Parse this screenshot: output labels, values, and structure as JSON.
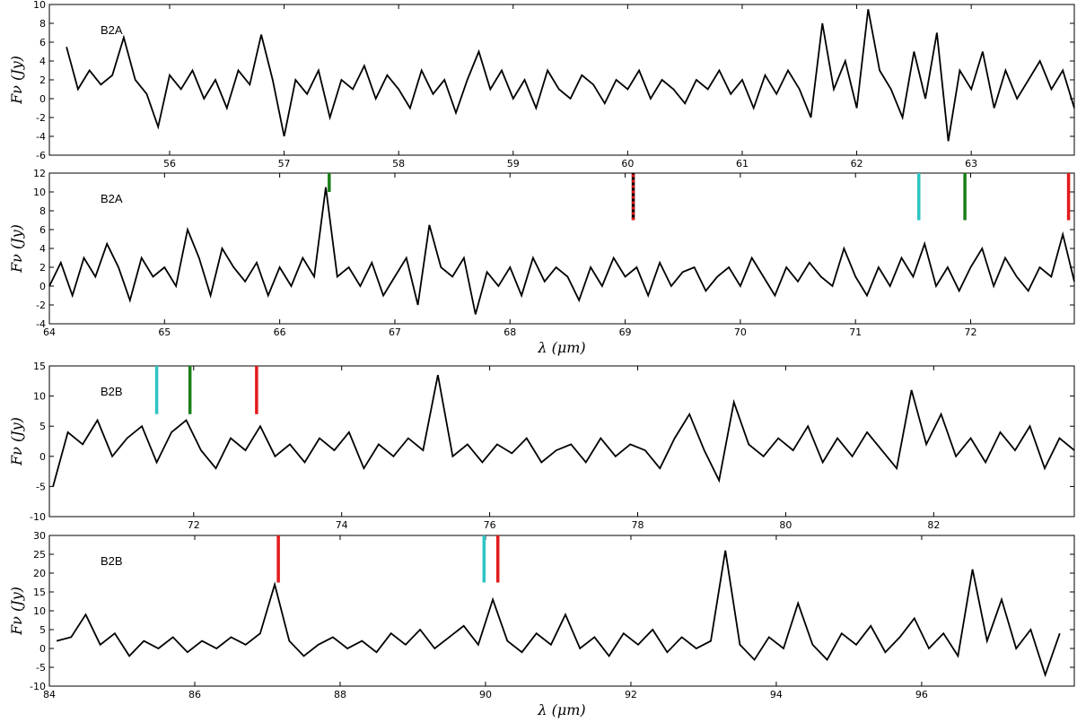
{
  "chart_data": [
    {
      "type": "line",
      "label": "B2A",
      "ylabel": "Fν (Jy)",
      "xlim": [
        54.95,
        63.9
      ],
      "ylim": [
        -6,
        10
      ],
      "xticks": [
        56,
        57,
        58,
        59,
        60,
        61,
        62,
        63
      ],
      "yticks": [
        -6,
        -4,
        -2,
        0,
        2,
        4,
        6,
        8,
        10
      ],
      "series": [
        {
          "color": "#000000",
          "x": [
            55.1,
            55.2,
            55.3,
            55.4,
            55.5,
            55.6,
            55.7,
            55.8,
            55.9,
            56.0,
            56.1,
            56.2,
            56.3,
            56.4,
            56.5,
            56.6,
            56.7,
            56.8,
            56.9,
            57.0,
            57.1,
            57.2,
            57.3,
            57.4,
            57.5,
            57.6,
            57.7,
            57.8,
            57.9,
            58.0,
            58.1,
            58.2,
            58.3,
            58.4,
            58.5,
            58.6,
            58.7,
            58.8,
            58.9,
            59.0,
            59.1,
            59.2,
            59.3,
            59.4,
            59.5,
            59.6,
            59.7,
            59.8,
            59.9,
            60.0,
            60.1,
            60.2,
            60.3,
            60.4,
            60.5,
            60.6,
            60.7,
            60.8,
            60.9,
            61.0,
            61.1,
            61.2,
            61.3,
            61.4,
            61.5,
            61.6,
            61.7,
            61.8,
            61.9,
            62.0,
            62.1,
            62.2,
            62.3,
            62.4,
            62.5,
            62.6,
            62.7,
            62.8,
            62.9,
            63.0,
            63.1,
            63.2,
            63.3,
            63.4,
            63.5,
            63.6,
            63.7,
            63.8,
            63.9
          ],
          "values": [
            5.5,
            1,
            3,
            1.5,
            2.5,
            6.5,
            2,
            0.5,
            -3,
            2.5,
            1,
            3,
            0,
            2,
            -1,
            3,
            1.5,
            6.8,
            2,
            -4,
            2,
            0.5,
            3,
            -2,
            2,
            1,
            3.5,
            0,
            2.5,
            1,
            -1,
            3,
            0.5,
            2,
            -1.5,
            2,
            5,
            1,
            3,
            0,
            2,
            -1,
            3,
            1,
            0,
            2.5,
            1.5,
            -0.5,
            2,
            1,
            3,
            0,
            2,
            1,
            -0.5,
            2,
            1,
            3,
            0.5,
            2,
            -1,
            2.5,
            0.5,
            3,
            1,
            -2,
            8,
            1,
            4,
            -1,
            9.5,
            3,
            1,
            -2,
            5,
            0,
            7,
            -4.5,
            3,
            1,
            5,
            -1,
            3,
            0,
            2,
            4,
            1,
            3,
            -1
          ]
        }
      ],
      "markers": []
    },
    {
      "type": "line",
      "label": "B2A",
      "ylabel": "Fν (Jy)",
      "xlabel": "λ (μm)",
      "xlim": [
        64,
        72.9
      ],
      "ylim": [
        -4,
        12
      ],
      "xticks": [
        64,
        65,
        66,
        67,
        68,
        69,
        70,
        71,
        72
      ],
      "yticks": [
        -4,
        -2,
        0,
        2,
        4,
        6,
        8,
        10,
        12
      ],
      "series": [
        {
          "color": "#000000",
          "x": [
            64.0,
            64.1,
            64.2,
            64.3,
            64.4,
            64.5,
            64.6,
            64.7,
            64.8,
            64.9,
            65.0,
            65.1,
            65.2,
            65.3,
            65.4,
            65.5,
            65.6,
            65.7,
            65.8,
            65.9,
            66.0,
            66.1,
            66.2,
            66.3,
            66.4,
            66.5,
            66.6,
            66.7,
            66.8,
            66.9,
            67.0,
            67.1,
            67.2,
            67.3,
            67.4,
            67.5,
            67.6,
            67.7,
            67.8,
            67.9,
            68.0,
            68.1,
            68.2,
            68.3,
            68.4,
            68.5,
            68.6,
            68.7,
            68.8,
            68.9,
            69.0,
            69.1,
            69.2,
            69.3,
            69.4,
            69.5,
            69.6,
            69.7,
            69.8,
            69.9,
            70.0,
            70.1,
            70.2,
            70.3,
            70.4,
            70.5,
            70.6,
            70.7,
            70.8,
            70.9,
            71.0,
            71.1,
            71.2,
            71.3,
            71.4,
            71.5,
            71.6,
            71.7,
            71.8,
            71.9,
            72.0,
            72.1,
            72.2,
            72.3,
            72.4,
            72.5,
            72.6,
            72.7,
            72.8,
            72.9
          ],
          "values": [
            0,
            2.5,
            -1,
            3,
            1,
            4.5,
            2,
            -1.5,
            3,
            1,
            2,
            0,
            6,
            3,
            -1,
            4,
            2,
            0.5,
            2.5,
            -1,
            2,
            0,
            3,
            1,
            10.5,
            1,
            2,
            0,
            2.5,
            -1,
            1,
            3,
            -2,
            6.5,
            2,
            1,
            3,
            -3,
            1.5,
            0,
            2,
            -1,
            3,
            0.5,
            2,
            1,
            -1.5,
            2,
            0,
            3,
            1,
            2,
            -1,
            2.5,
            0,
            1.5,
            2,
            -0.5,
            1,
            2,
            0,
            3,
            1,
            -1,
            2,
            0.5,
            2.5,
            1,
            0,
            4,
            1,
            -1,
            2,
            0,
            3,
            1,
            4.5,
            0,
            2,
            -0.5,
            2,
            4,
            0,
            3,
            1,
            -0.5,
            2,
            1,
            5.5,
            0.5
          ]
        }
      ],
      "markers": [
        {
          "x": 66.43,
          "color": "#1a7f1a",
          "y": [
            10,
            12
          ]
        },
        {
          "x": 69.07,
          "color": "#000000",
          "dash_color": "#e31a1c",
          "y": [
            7,
            12
          ]
        },
        {
          "x": 71.55,
          "color": "#2ec4c4",
          "y": [
            7,
            12
          ]
        },
        {
          "x": 71.95,
          "color": "#1a7f1a",
          "y": [
            7,
            12
          ]
        },
        {
          "x": 72.85,
          "color": "#e31a1c",
          "y": [
            7,
            12
          ]
        }
      ]
    },
    {
      "type": "line",
      "label": "B2B",
      "ylabel": "Fν (Jy)",
      "xlim": [
        70.05,
        83.9
      ],
      "ylim": [
        -10,
        15
      ],
      "xticks": [
        72,
        74,
        76,
        78,
        80,
        82
      ],
      "yticks": [
        -10,
        -5,
        0,
        5,
        10,
        15
      ],
      "series": [
        {
          "color": "#000000",
          "x": [
            70.1,
            70.3,
            70.5,
            70.7,
            70.9,
            71.1,
            71.3,
            71.5,
            71.7,
            71.9,
            72.1,
            72.3,
            72.5,
            72.7,
            72.9,
            73.1,
            73.3,
            73.5,
            73.7,
            73.9,
            74.1,
            74.3,
            74.5,
            74.7,
            74.9,
            75.1,
            75.3,
            75.5,
            75.7,
            75.9,
            76.1,
            76.3,
            76.5,
            76.7,
            76.9,
            77.1,
            77.3,
            77.5,
            77.7,
            77.9,
            78.1,
            78.3,
            78.5,
            78.7,
            78.9,
            79.1,
            79.3,
            79.5,
            79.7,
            79.9,
            80.1,
            80.3,
            80.5,
            80.7,
            80.9,
            81.1,
            81.3,
            81.5,
            81.7,
            81.9,
            82.1,
            82.3,
            82.5,
            82.7,
            82.9,
            83.1,
            83.3,
            83.5,
            83.7,
            83.9
          ],
          "values": [
            -5,
            4,
            2,
            6,
            0,
            3,
            5,
            -1,
            4,
            6,
            1,
            -2,
            3,
            1,
            5,
            0,
            2,
            -1,
            3,
            1,
            4,
            -2,
            2,
            0,
            3,
            1,
            13.5,
            0,
            2,
            -1,
            2,
            0.5,
            3,
            -1,
            1,
            2,
            -1,
            3,
            0,
            2,
            1,
            -2,
            3,
            7,
            1,
            -4,
            9,
            2,
            0,
            3,
            1,
            5,
            -1,
            3,
            0,
            4,
            1,
            -2,
            11,
            2,
            7,
            0,
            3,
            -1,
            4,
            1,
            5,
            -2,
            3,
            1
          ]
        }
      ],
      "markers": [
        {
          "x": 71.5,
          "color": "#2ec4c4",
          "y": [
            7,
            15
          ]
        },
        {
          "x": 71.95,
          "color": "#1a7f1a",
          "y": [
            7,
            15
          ]
        },
        {
          "x": 72.85,
          "color": "#e31a1c",
          "y": [
            7,
            15
          ]
        }
      ]
    },
    {
      "type": "line",
      "label": "B2B",
      "ylabel": "Fν (Jy)",
      "xlabel": "λ (μm)",
      "xlim": [
        84,
        98.1
      ],
      "ylim": [
        -10,
        30
      ],
      "xticks": [
        84,
        86,
        88,
        90,
        92,
        94,
        96
      ],
      "yticks": [
        -10,
        -5,
        0,
        5,
        10,
        15,
        20,
        25,
        30
      ],
      "series": [
        {
          "color": "#000000",
          "x": [
            84.1,
            84.3,
            84.5,
            84.7,
            84.9,
            85.1,
            85.3,
            85.5,
            85.7,
            85.9,
            86.1,
            86.3,
            86.5,
            86.7,
            86.9,
            87.1,
            87.3,
            87.5,
            87.7,
            87.9,
            88.1,
            88.3,
            88.5,
            88.7,
            88.9,
            89.1,
            89.3,
            89.5,
            89.7,
            89.9,
            90.1,
            90.3,
            90.5,
            90.7,
            90.9,
            91.1,
            91.3,
            91.5,
            91.7,
            91.9,
            92.1,
            92.3,
            92.5,
            92.7,
            92.9,
            93.1,
            93.3,
            93.5,
            93.7,
            93.9,
            94.1,
            94.3,
            94.5,
            94.7,
            94.9,
            95.1,
            95.3,
            95.5,
            95.7,
            95.9,
            96.1,
            96.3,
            96.5,
            96.7,
            96.9,
            97.1,
            97.3,
            97.5,
            97.7,
            97.9
          ],
          "values": [
            2,
            3,
            9,
            1,
            4,
            -2,
            2,
            0,
            3,
            -1,
            2,
            0,
            3,
            1,
            4,
            17,
            2,
            -2,
            1,
            3,
            0,
            2,
            -1,
            4,
            1,
            5,
            0,
            3,
            6,
            1,
            13,
            2,
            -1,
            4,
            1,
            9,
            0,
            3,
            -2,
            4,
            1,
            5,
            -1,
            3,
            0,
            2,
            26,
            1,
            -3,
            3,
            0,
            12,
            1,
            -3,
            4,
            1,
            6,
            -1,
            3,
            8,
            0,
            4,
            -2,
            21,
            2,
            13,
            0,
            5,
            -7,
            4
          ]
        }
      ],
      "markers": [
        {
          "x": 87.15,
          "color": "#e31a1c",
          "y": [
            17.5,
            30
          ]
        },
        {
          "x": 89.98,
          "color": "#2ec4c4",
          "y": [
            17.5,
            30
          ]
        },
        {
          "x": 90.17,
          "color": "#e31a1c",
          "y": [
            17.5,
            30
          ]
        }
      ]
    }
  ]
}
